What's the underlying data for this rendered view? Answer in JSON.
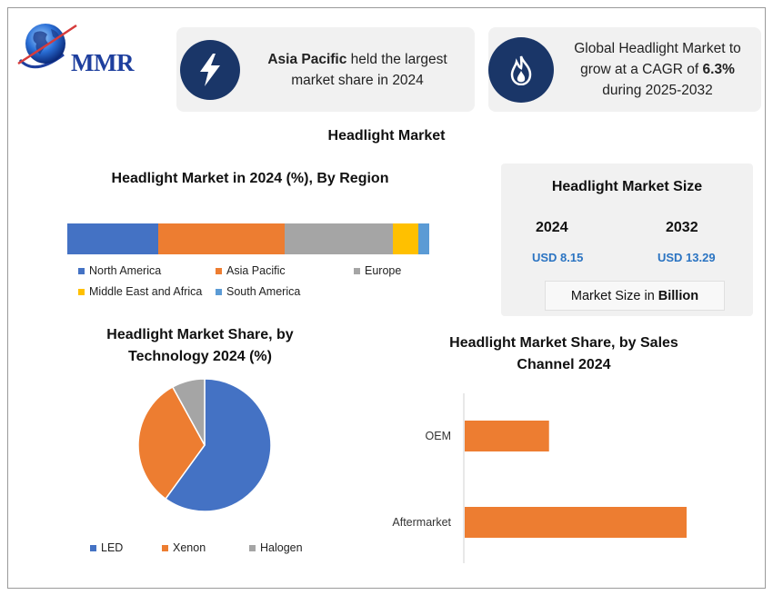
{
  "logo": {
    "text": "MMR"
  },
  "info": {
    "region_bold": "Asia Pacific",
    "region_rest": " held the largest market share in 2024",
    "cagr_pre": "Global Headlight Market to grow at a CAGR of ",
    "cagr_bold": "6.3%",
    "cagr_post": " during 2025-2032"
  },
  "icons": {
    "left": "lightning-icon",
    "right": "flame-icon"
  },
  "main_title": "Headlight Market",
  "market_size": {
    "title": "Headlight Market Size",
    "year_a": "2024",
    "value_a": "USD 8.15",
    "year_b": "2032",
    "value_b": "USD 13.29",
    "unit_pre": "Market Size in",
    "unit_bold": "Billion"
  },
  "colors": {
    "north_america": "#4472c4",
    "asia_pacific": "#ed7d31",
    "europe": "#a5a5a5",
    "mea": "#ffc000",
    "south_america": "#5b9bd5",
    "icon_bg": "#1a3668",
    "usd_blue": "#2b74c2"
  },
  "chart_data": [
    {
      "type": "bar",
      "orientation": "horizontal-stacked",
      "title": "Headlight Market in 2024 (%), By Region",
      "series": [
        {
          "name": "North America",
          "values": [
            25
          ]
        },
        {
          "name": "Asia Pacific",
          "values": [
            35
          ]
        },
        {
          "name": "Europe",
          "values": [
            30
          ]
        },
        {
          "name": "Middle East and Africa",
          "values": [
            7
          ]
        },
        {
          "name": "South America",
          "values": [
            3
          ]
        }
      ],
      "legend": "bottom"
    },
    {
      "type": "pie",
      "title_line1": "Headlight Market Share, by",
      "title_line2": "Technology 2024 (%)",
      "labels": [
        "LED",
        "Xenon",
        "Halogen"
      ],
      "values": [
        60,
        32,
        8
      ],
      "legend": "bottom"
    },
    {
      "type": "bar",
      "orientation": "horizontal",
      "title_line1": "Headlight Market Share, by Sales",
      "title_line2": "Channel 2024",
      "categories": [
        "OEM",
        "Aftermarket"
      ],
      "values": [
        38,
        100
      ],
      "xlim": [
        0,
        100
      ],
      "grid": false
    }
  ]
}
